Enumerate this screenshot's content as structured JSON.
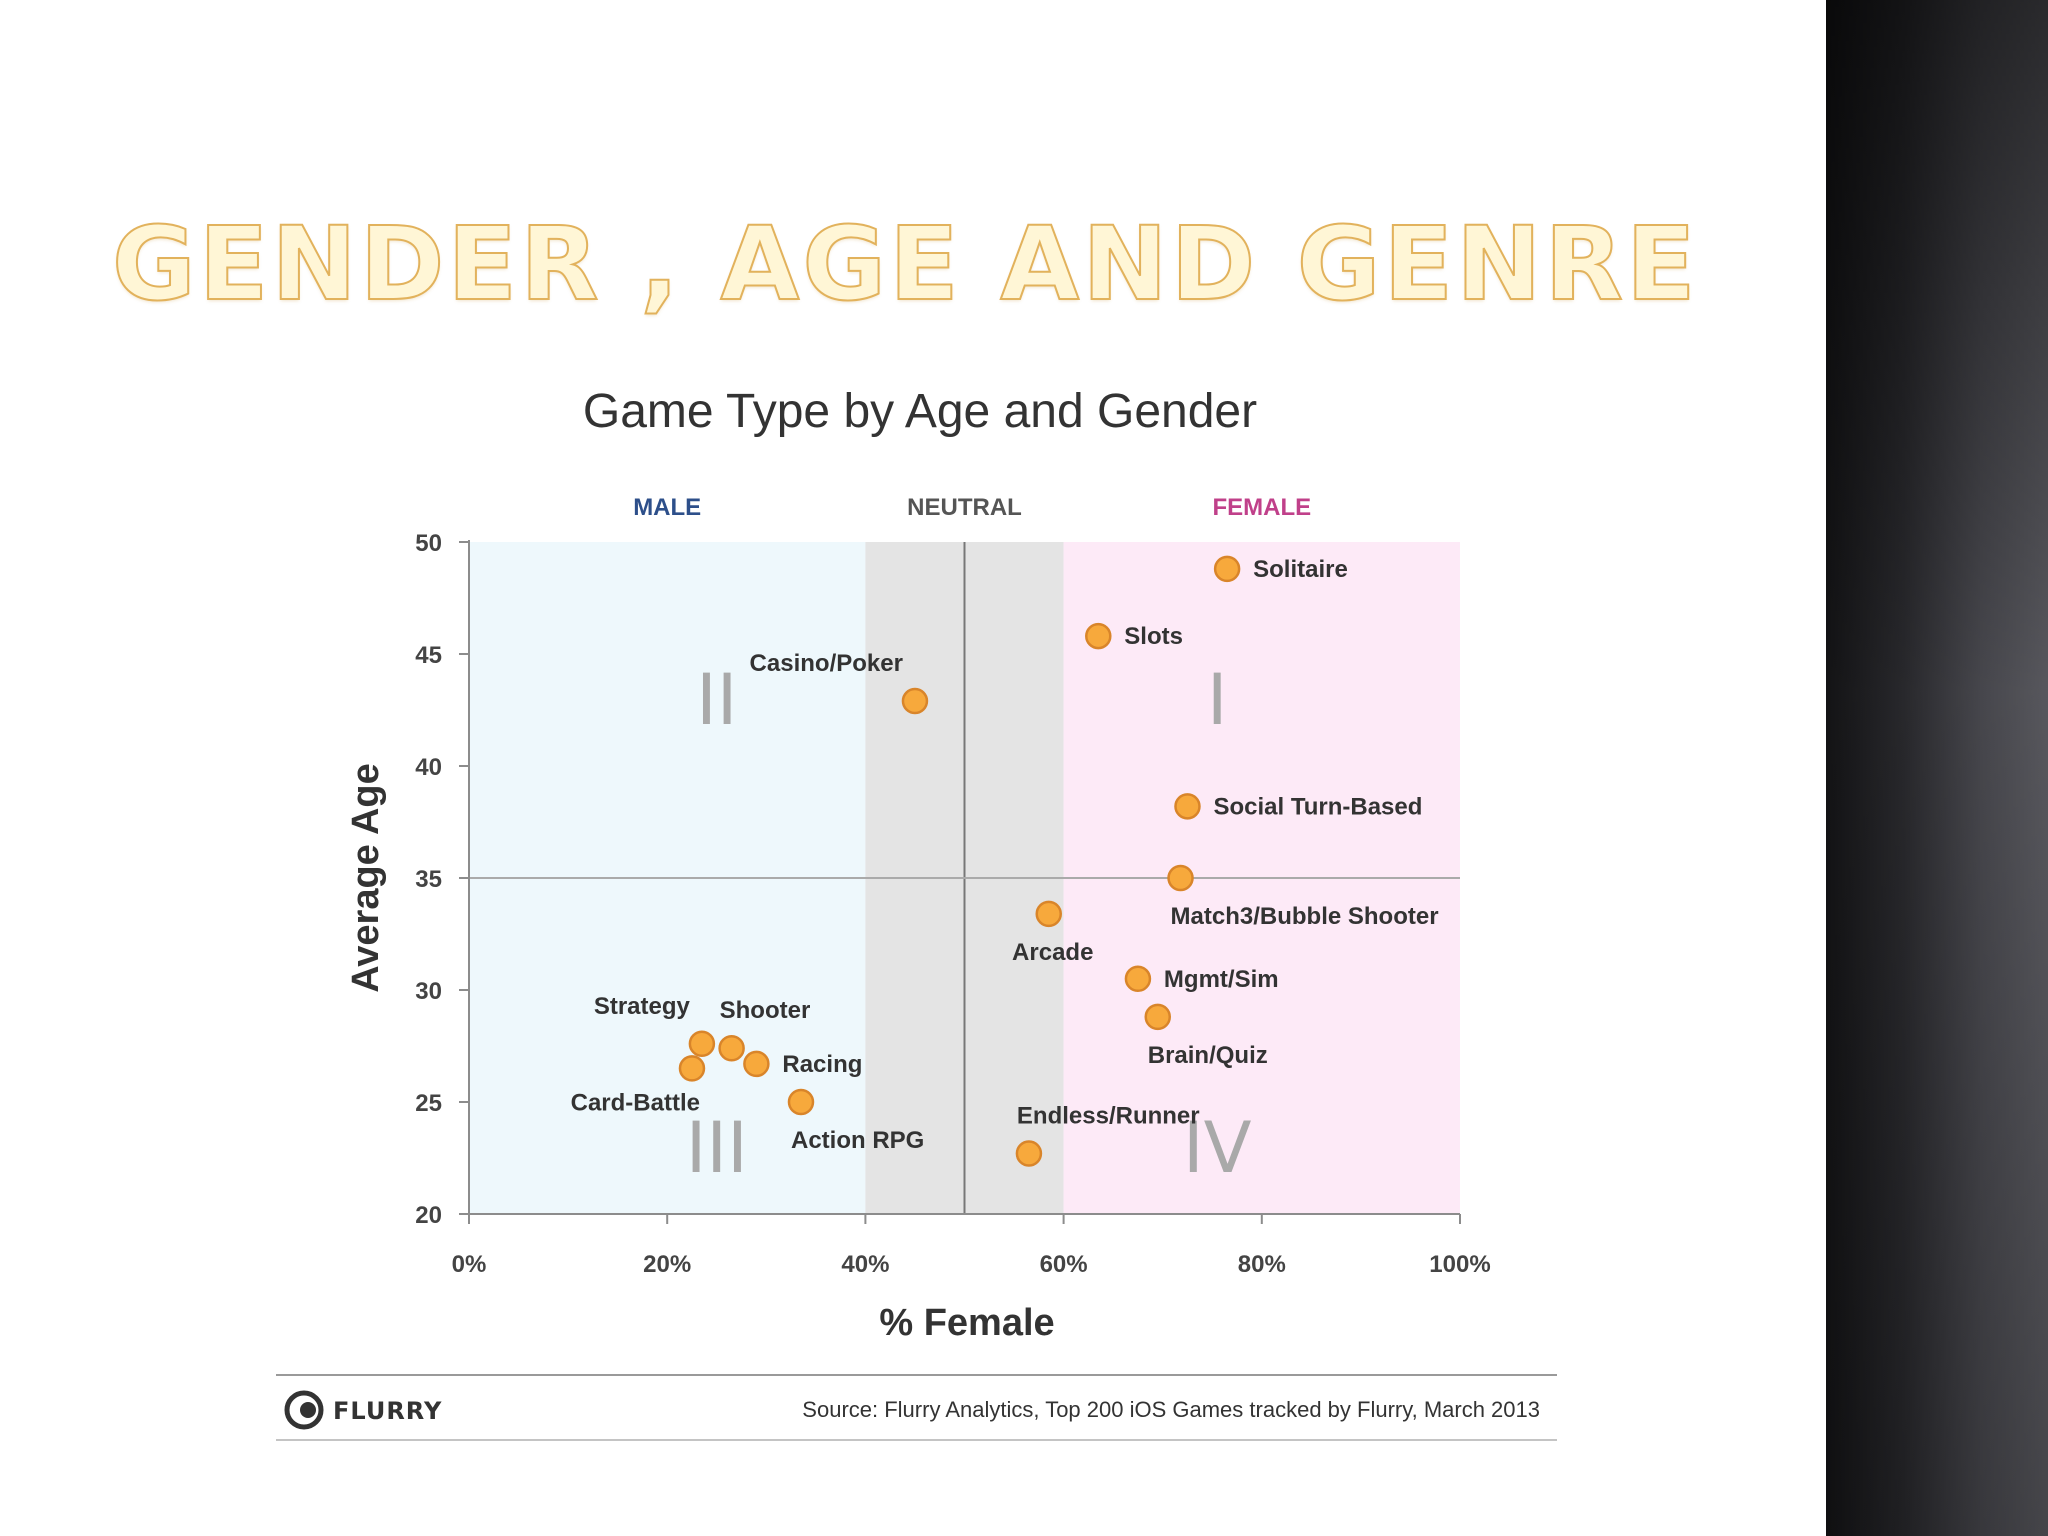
{
  "slide": {
    "title": "GENDER , AGE AND GENRE"
  },
  "chart_data": {
    "type": "scatter",
    "title": "Game Type by Age and Gender",
    "xlabel": "% Female",
    "ylabel": "Average Age",
    "xlim": [
      0,
      100
    ],
    "ylim": [
      20,
      50
    ],
    "xticks": [
      "0%",
      "20%",
      "40%",
      "60%",
      "80%",
      "100%"
    ],
    "yticks": [
      "20",
      "25",
      "30",
      "35",
      "40",
      "45",
      "50"
    ],
    "zones": [
      {
        "label": "MALE",
        "from": 0,
        "to": 40,
        "color": "#eef8fc",
        "label_color": "#2d4f8a"
      },
      {
        "label": "NEUTRAL",
        "from": 40,
        "to": 60,
        "color": "#e4e4e4",
        "label_color": "#555555"
      },
      {
        "label": "FEMALE",
        "from": 60,
        "to": 100,
        "color": "#fdeaf7",
        "label_color": "#c0408a"
      }
    ],
    "divider_x": 50,
    "divider_y": 35,
    "quadrants": [
      {
        "label": "I",
        "x": 75.5,
        "y": 43
      },
      {
        "label": "II",
        "x": 25,
        "y": 43
      },
      {
        "label": "III",
        "x": 25,
        "y": 23
      },
      {
        "label": "IV",
        "x": 75.5,
        "y": 23
      }
    ],
    "point_color": "#f7a93c",
    "point_stroke": "#d9852a",
    "points": [
      {
        "label": "Solitaire",
        "x": 76.5,
        "y": 48.8,
        "pos": "right"
      },
      {
        "label": "Slots",
        "x": 63.5,
        "y": 45.8,
        "pos": "right"
      },
      {
        "label": "Casino/Poker",
        "x": 45,
        "y": 42.9,
        "pos": "above-left"
      },
      {
        "label": "Social Turn-Based",
        "x": 72.5,
        "y": 38.2,
        "pos": "right"
      },
      {
        "label": "Match3/Bubble Shooter",
        "x": 71.8,
        "y": 35,
        "pos": "below-right"
      },
      {
        "label": "Arcade",
        "x": 58.5,
        "y": 33.4,
        "pos": "below"
      },
      {
        "label": "Mgmt/Sim",
        "x": 67.5,
        "y": 30.5,
        "pos": "right"
      },
      {
        "label": "Brain/Quiz",
        "x": 69.5,
        "y": 28.8,
        "pos": "below-right"
      },
      {
        "label": "Strategy",
        "x": 23.5,
        "y": 27.6,
        "pos": "above-left"
      },
      {
        "label": "Shooter",
        "x": 26.5,
        "y": 27.4,
        "pos": "above-right"
      },
      {
        "label": "Racing",
        "x": 29,
        "y": 26.7,
        "pos": "right"
      },
      {
        "label": "Card-Battle",
        "x": 22.5,
        "y": 26.5,
        "pos": "below-left"
      },
      {
        "label": "Action RPG",
        "x": 33.5,
        "y": 25,
        "pos": "below-right"
      },
      {
        "label": "Endless/Runner",
        "x": 56.5,
        "y": 22.7,
        "pos": "above-right"
      }
    ]
  },
  "footer": {
    "logo": "FLURRY",
    "logo_icon": "flurry-logo-icon",
    "source": "Source: Flurry Analytics, Top 200 iOS Games tracked by Flurry, March 2013"
  }
}
